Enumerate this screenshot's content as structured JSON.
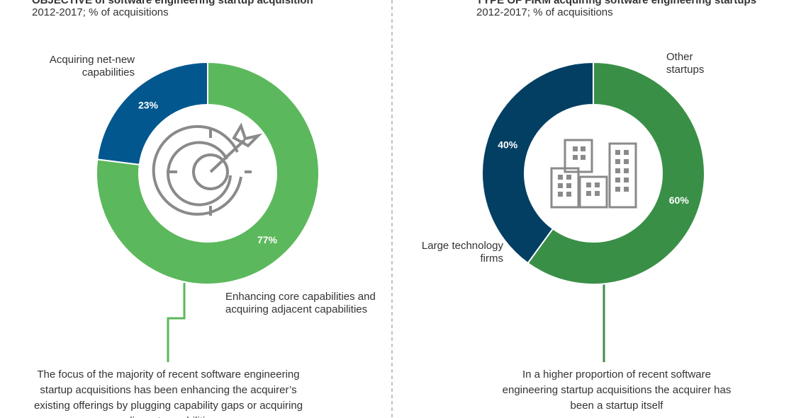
{
  "chart_data": [
    {
      "type": "pie",
      "title": "OBJECTIVE of software engineering startup acquisition",
      "subtitle": "2012-2017; % of acquisitions",
      "categories": [
        "Acquiring net-new capabilities",
        "Enhancing core capabilities and acquiring adjacent capabilities"
      ],
      "values": [
        23,
        77
      ],
      "value_labels": [
        "23%",
        "77%"
      ],
      "colors": [
        "#02578e",
        "#5cb85c"
      ],
      "annotation": "The focus of the majority of recent software engineering startup acquisitions has been enhancing the acquirer’s existing offerings by plugging capability gaps or acquiring adjacent capabilities"
    },
    {
      "type": "pie",
      "title": "TYPE OF FIRM acquiring software engineering startups",
      "subtitle": "2012-2017; % of acquisitions",
      "categories": [
        "Large technology firms",
        "Other startups"
      ],
      "values": [
        40,
        60
      ],
      "value_labels": [
        "40%",
        "60%"
      ],
      "colors": [
        "#023f63",
        "#3a8f47"
      ],
      "annotation": "In a higher proportion of recent software engineering startup acquisitions the acquirer has been a startup itself"
    }
  ]
}
